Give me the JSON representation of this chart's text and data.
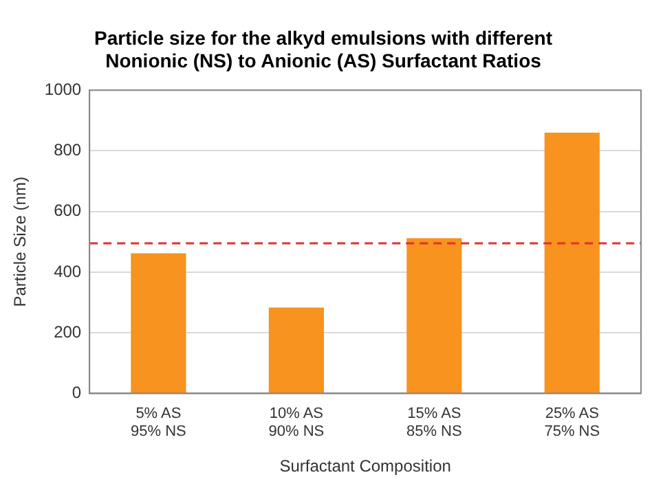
{
  "chart_data": {
    "type": "bar",
    "title": "Particle size for the alkyd emulsions with different\nNonionic (NS) to Anionic (AS) Surfactant Ratios",
    "xlabel": "Surfactant Composition",
    "ylabel": "Particle Size (nm)",
    "categories": [
      "5% AS\n95% NS",
      "10% AS\n90% NS",
      "15% AS\n85% NS",
      "25% AS\n75% NS"
    ],
    "values": [
      462,
      283,
      512,
      860
    ],
    "color": "#f7931e",
    "ylim": [
      0,
      1000
    ],
    "yticks": [
      0,
      200,
      400,
      600,
      800,
      1000
    ],
    "grid": "y",
    "legend": false,
    "ref_lines": [
      {
        "axis": "y",
        "value": 495,
        "color": "#e03131",
        "line_style": "dashed"
      }
    ]
  }
}
